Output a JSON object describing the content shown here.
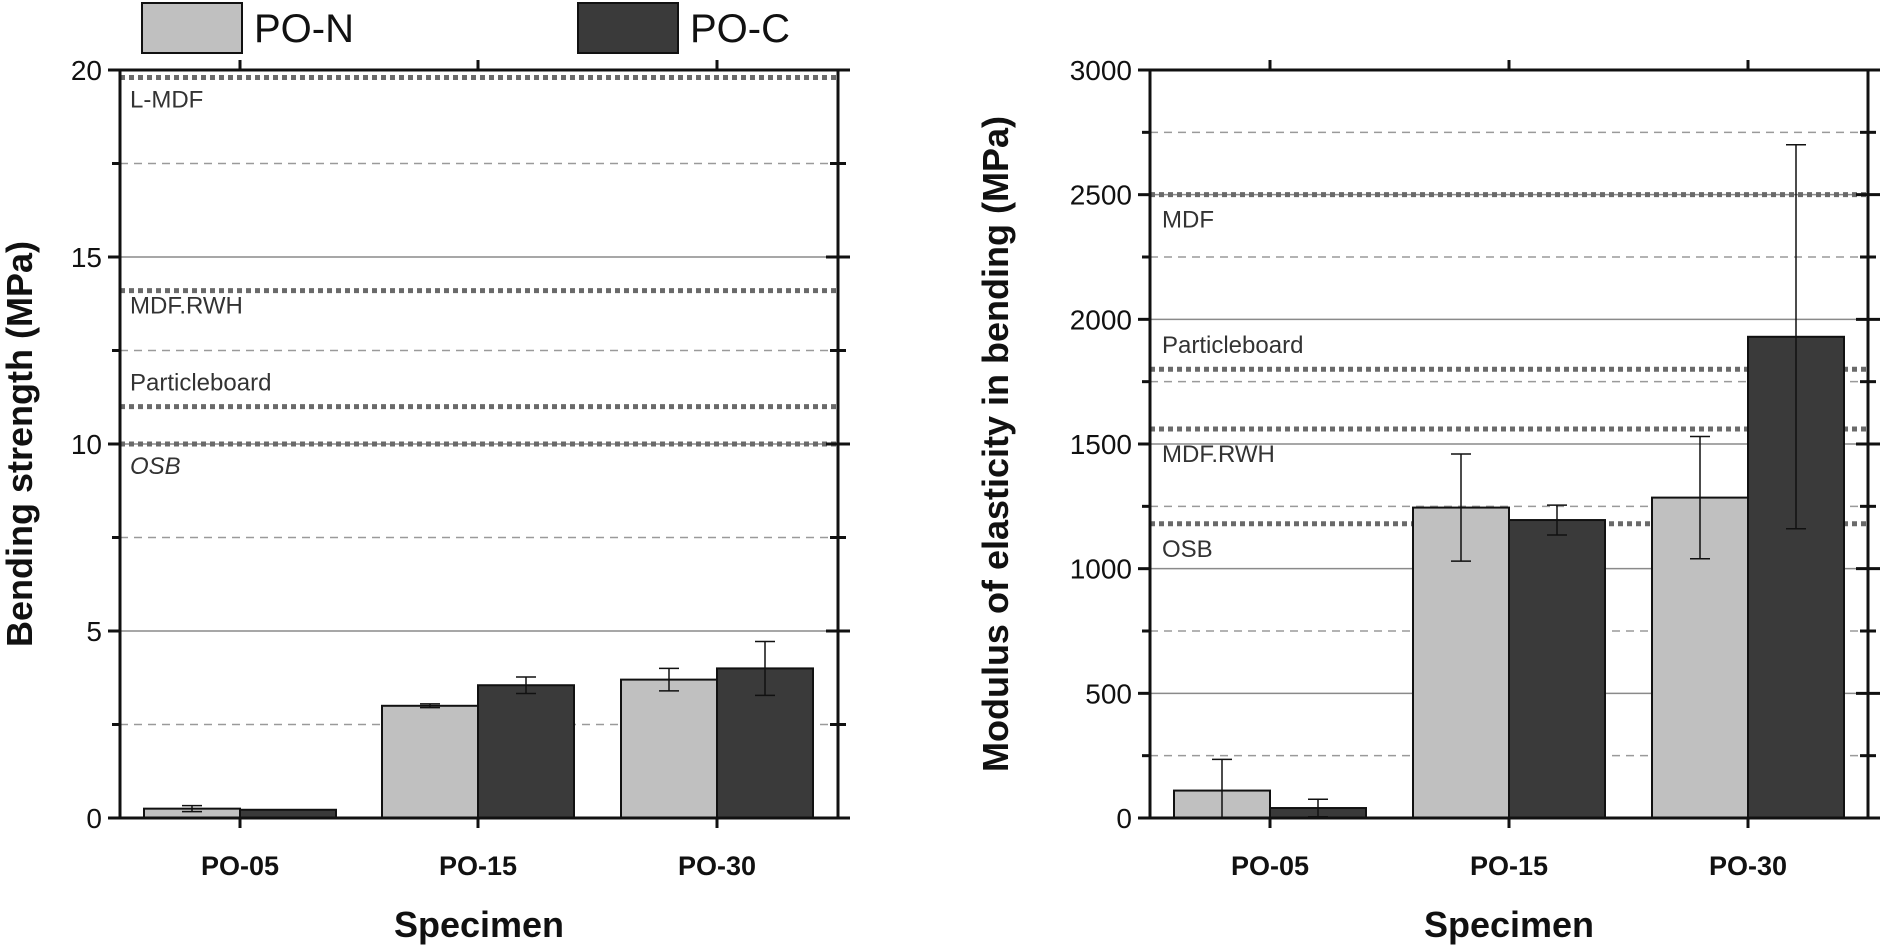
{
  "legend": [
    {
      "name": "PO-N",
      "color": "#c0c0c0"
    },
    {
      "name": "PO-C",
      "color": "#3a3a3a"
    }
  ],
  "chart_data": [
    {
      "type": "bar",
      "categories": [
        "PO-05",
        "PO-15",
        "PO-30"
      ],
      "series": [
        {
          "name": "PO-N",
          "color": "#c0c0c0",
          "values": [
            0.25,
            3.0,
            3.7
          ],
          "errors": [
            0.08,
            0.05,
            0.3
          ]
        },
        {
          "name": "PO-C",
          "color": "#3a3a3a",
          "values": [
            0.22,
            3.55,
            4.0
          ],
          "errors": [
            0.0,
            0.22,
            0.72
          ]
        }
      ],
      "xlabel": "Specimen",
      "ylabel": "Bending strength (MPa)",
      "ylim": [
        0,
        20
      ],
      "yticks": [
        "0",
        "5",
        "10",
        "15",
        "20"
      ],
      "grid_major": [
        5,
        10,
        15
      ],
      "grid_minor": [
        2.5,
        7.5,
        12.5,
        17.5
      ],
      "reference_lines": [
        {
          "label": "L-MDF",
          "value": 19.8
        },
        {
          "label": "MDF.RWH",
          "value": 14.1
        },
        {
          "label": "Particleboard",
          "value": 11.0
        },
        {
          "label": "OSB",
          "value": 10.0,
          "italic": true
        }
      ]
    },
    {
      "type": "bar",
      "categories": [
        "PO-05",
        "PO-15",
        "PO-30"
      ],
      "series": [
        {
          "name": "PO-N",
          "color": "#c0c0c0",
          "values": [
            110,
            1245,
            1285
          ],
          "errors": [
            125,
            215,
            245
          ]
        },
        {
          "name": "PO-C",
          "color": "#3a3a3a",
          "values": [
            40,
            1195,
            1930
          ],
          "errors": [
            35,
            60,
            770
          ]
        }
      ],
      "xlabel": "Specimen",
      "ylabel": "Modulus of elasticity in bending (MPa)",
      "ylim": [
        0,
        3000
      ],
      "yticks": [
        "0",
        "500",
        "1000",
        "1500",
        "2000",
        "2500",
        "3000"
      ],
      "grid_major": [
        500,
        1000,
        1500,
        2000,
        2500
      ],
      "grid_minor": [
        250,
        750,
        1250,
        1750,
        2250,
        2750
      ],
      "reference_lines": [
        {
          "label": "MDF",
          "value": 2500
        },
        {
          "label": "Particleboard",
          "value": 1800
        },
        {
          "label": "MDF.RWH",
          "value": 1560
        },
        {
          "label": "OSB",
          "value": 1180
        }
      ]
    }
  ]
}
